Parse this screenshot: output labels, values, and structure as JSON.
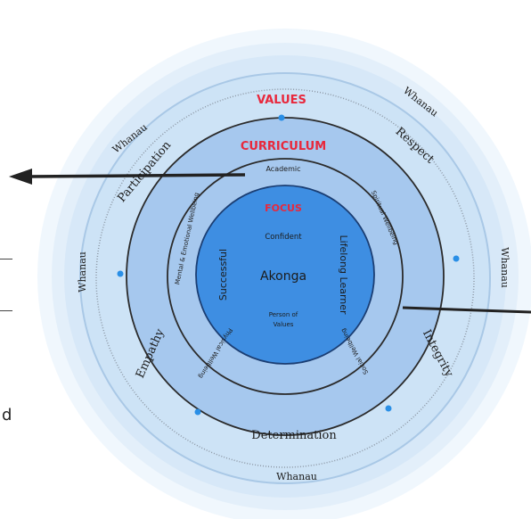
{
  "rings": {
    "values": {
      "title": "VALUES",
      "items": [
        "Respect",
        "Integrity",
        "Determination",
        "Empathy",
        "Participation"
      ]
    },
    "whanau": {
      "label": "Whanau"
    },
    "curriculum": {
      "title": "CURRICULUM",
      "items": [
        "Academic",
        "Spiritual Wellbeing",
        "Social Wellbeing",
        "Physical Wellbeing",
        "Mental & Emotional Wellbeing"
      ]
    },
    "focus": {
      "title": "FOCUS",
      "center": "Akonga",
      "confident": "Confident",
      "successful": "Successful",
      "lifelong_learner": "Lifelong Learner",
      "person_of_values_1": "Person of",
      "person_of_values_2": "Values"
    }
  },
  "side_text": "d",
  "colors": {
    "outer_glow": "#e3effa",
    "values_ring": "#cde3f6",
    "curriculum_ring": "#a6c8ee",
    "focus_circle": "#3e8ee2",
    "title_red": "#e8283c",
    "dot_blue": "#2a8fe6",
    "arrow": "#222222"
  },
  "icons": {
    "arrow_left": "arrow-left-icon",
    "arrow_right_line": "arrow-line-icon",
    "dot": "dot-icon"
  }
}
